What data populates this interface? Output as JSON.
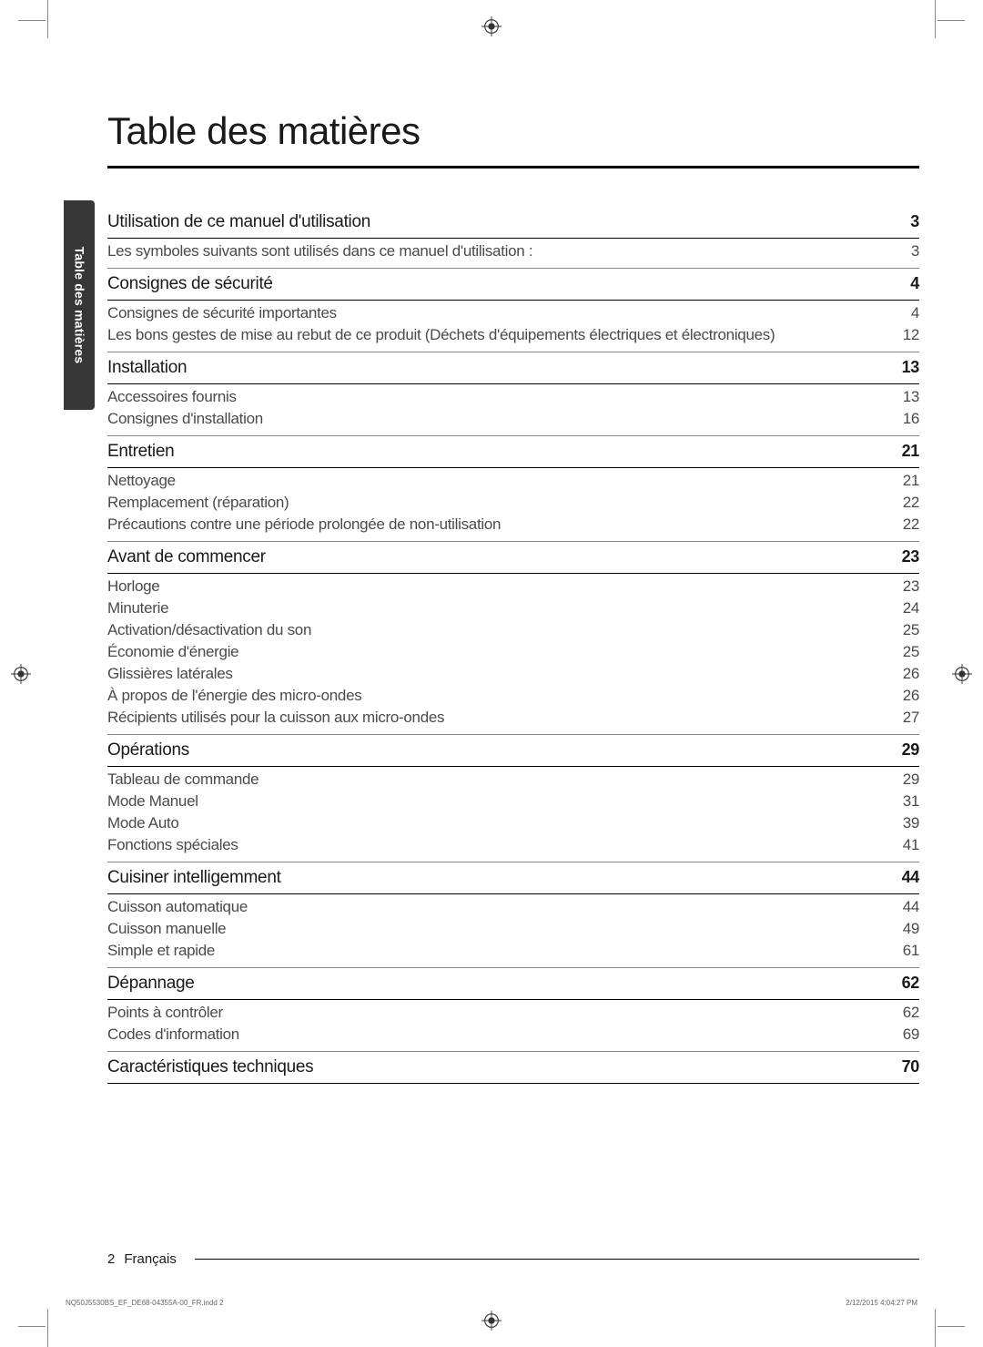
{
  "page_title": "Table des matières",
  "side_tab_label": "Table des matières",
  "footer": {
    "page_number": "2",
    "language": "Français"
  },
  "indd": {
    "file": "NQ50J5530BS_EF_DE68-04355A-00_FR.indd   2",
    "timestamp": "2/12/2015   4:04:27 PM"
  },
  "toc": [
    {
      "section": "Utilisation de ce manuel d'utilisation",
      "page": "3",
      "items": [
        {
          "label": "Les symboles suivants sont utilisés dans ce manuel d'utilisation :",
          "page": "3"
        }
      ]
    },
    {
      "section": "Consignes de sécurité",
      "page": "4",
      "items": [
        {
          "label": "Consignes de sécurité importantes",
          "page": "4"
        },
        {
          "label": "Les bons gestes de mise au rebut de ce produit (Déchets d'équipements électriques et électroniques)",
          "page": "12"
        }
      ]
    },
    {
      "section": "Installation",
      "page": "13",
      "items": [
        {
          "label": "Accessoires fournis",
          "page": "13"
        },
        {
          "label": "Consignes d'installation",
          "page": "16"
        }
      ]
    },
    {
      "section": "Entretien",
      "page": "21",
      "items": [
        {
          "label": "Nettoyage",
          "page": "21"
        },
        {
          "label": "Remplacement (réparation)",
          "page": "22"
        },
        {
          "label": "Précautions contre une période prolongée de non-utilisation",
          "page": "22"
        }
      ]
    },
    {
      "section": "Avant de commencer",
      "page": "23",
      "items": [
        {
          "label": "Horloge",
          "page": "23"
        },
        {
          "label": "Minuterie",
          "page": "24"
        },
        {
          "label": "Activation/désactivation du son",
          "page": "25"
        },
        {
          "label": "Économie d'énergie",
          "page": "25"
        },
        {
          "label": "Glissières latérales",
          "page": "26"
        },
        {
          "label": "À propos de l'énergie des micro-ondes",
          "page": "26"
        },
        {
          "label": "Récipients utilisés pour la cuisson aux micro-ondes",
          "page": "27"
        }
      ]
    },
    {
      "section": "Opérations",
      "page": "29",
      "items": [
        {
          "label": "Tableau de commande",
          "page": "29"
        },
        {
          "label": "Mode Manuel",
          "page": "31"
        },
        {
          "label": "Mode Auto",
          "page": "39"
        },
        {
          "label": "Fonctions spéciales",
          "page": "41"
        }
      ]
    },
    {
      "section": "Cuisiner intelligemment",
      "page": "44",
      "items": [
        {
          "label": "Cuisson automatique",
          "page": "44"
        },
        {
          "label": "Cuisson manuelle",
          "page": "49"
        },
        {
          "label": "Simple et rapide",
          "page": "61"
        }
      ]
    },
    {
      "section": "Dépannage",
      "page": "62",
      "items": [
        {
          "label": "Points à contrôler",
          "page": "62"
        },
        {
          "label": "Codes d'information",
          "page": "69"
        }
      ]
    },
    {
      "section": "Caractéristiques techniques",
      "page": "70",
      "items": []
    }
  ]
}
